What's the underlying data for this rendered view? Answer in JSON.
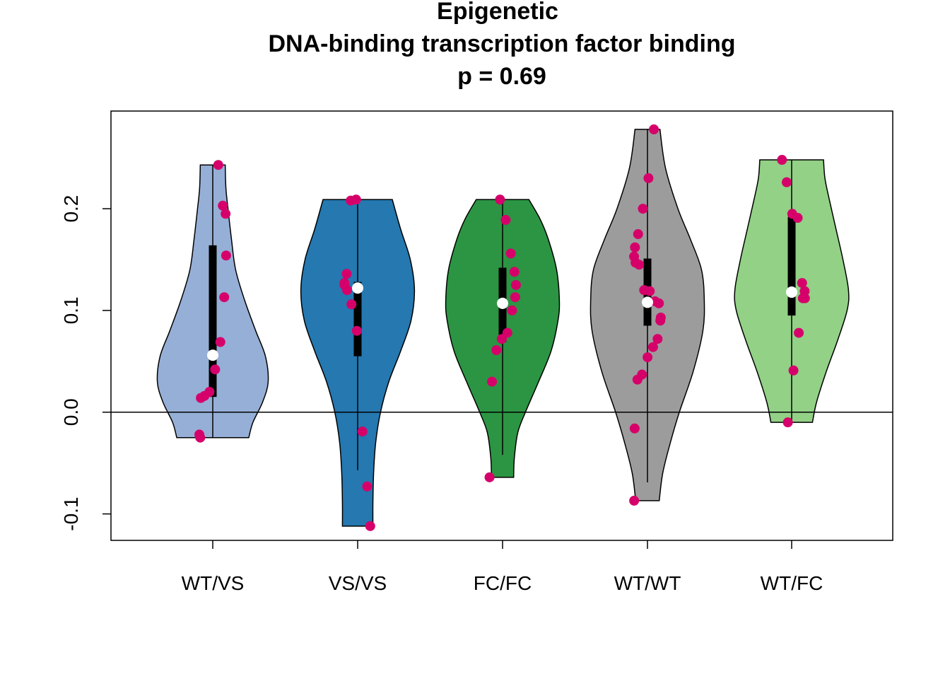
{
  "chart_data": {
    "type": "violin",
    "title_lines": [
      "Epigenetic",
      "DNA-binding transcription factor binding",
      "p = 0.69"
    ],
    "xlabel": "",
    "ylabel": "",
    "ylim": [
      -0.126,
      0.296
    ],
    "yticks": [
      -0.1,
      0.0,
      0.1,
      0.2
    ],
    "ytick_labels": [
      "-0.1",
      "0.0",
      "0.1",
      "0.2"
    ],
    "reference_line_y": 0.0,
    "categories": [
      "WT/VS",
      "VS/VS",
      "FC/FC",
      "WT/WT",
      "WT/FC"
    ],
    "point_color": "#d6006a",
    "groups": [
      {
        "name": "WT/VS",
        "fill": "#96afd7",
        "min": -0.025,
        "max": 0.243,
        "q1": 0.015,
        "median": 0.056,
        "q3": 0.164,
        "whisker_low": -0.025,
        "whisker_high": 0.243,
        "density": [
          [
            -0.025,
            0.52
          ],
          [
            -0.01,
            0.58
          ],
          [
            0.01,
            0.72
          ],
          [
            0.03,
            0.8
          ],
          [
            0.055,
            0.76
          ],
          [
            0.08,
            0.62
          ],
          [
            0.11,
            0.46
          ],
          [
            0.14,
            0.33
          ],
          [
            0.17,
            0.27
          ],
          [
            0.2,
            0.22
          ],
          [
            0.22,
            0.19
          ],
          [
            0.243,
            0.18
          ]
        ],
        "points": [
          0.243,
          0.203,
          0.195,
          0.154,
          0.113,
          0.069,
          0.042,
          0.02,
          0.016,
          0.014,
          -0.022,
          -0.025
        ]
      },
      {
        "name": "VS/VS",
        "fill": "#2578b0",
        "min": -0.112,
        "max": 0.209,
        "q1": 0.055,
        "median": 0.122,
        "q3": 0.128,
        "whisker_low": -0.057,
        "whisker_high": 0.209,
        "density": [
          [
            -0.112,
            0.22
          ],
          [
            -0.09,
            0.22
          ],
          [
            -0.06,
            0.23
          ],
          [
            -0.03,
            0.26
          ],
          [
            0.0,
            0.33
          ],
          [
            0.03,
            0.45
          ],
          [
            0.06,
            0.62
          ],
          [
            0.09,
            0.77
          ],
          [
            0.12,
            0.82
          ],
          [
            0.15,
            0.76
          ],
          [
            0.18,
            0.62
          ],
          [
            0.209,
            0.5
          ]
        ],
        "points": [
          0.209,
          0.208,
          0.136,
          0.127,
          0.125,
          0.12,
          0.106,
          0.08,
          -0.019,
          -0.073,
          -0.112
        ]
      },
      {
        "name": "FC/FC",
        "fill": "#2c9543",
        "min": -0.064,
        "max": 0.209,
        "q1": 0.069,
        "median": 0.107,
        "q3": 0.142,
        "whisker_low": -0.042,
        "whisker_high": 0.209,
        "density": [
          [
            -0.064,
            0.16
          ],
          [
            -0.045,
            0.17
          ],
          [
            -0.02,
            0.22
          ],
          [
            0.0,
            0.33
          ],
          [
            0.03,
            0.52
          ],
          [
            0.06,
            0.7
          ],
          [
            0.09,
            0.8
          ],
          [
            0.11,
            0.82
          ],
          [
            0.14,
            0.78
          ],
          [
            0.17,
            0.66
          ],
          [
            0.19,
            0.54
          ],
          [
            0.209,
            0.38
          ]
        ],
        "points": [
          0.209,
          0.189,
          0.156,
          0.138,
          0.125,
          0.113,
          0.1,
          0.078,
          0.072,
          0.061,
          0.03,
          -0.064
        ]
      },
      {
        "name": "WT/WT",
        "fill": "#9c9c9c",
        "min": -0.087,
        "max": 0.278,
        "q1": 0.085,
        "median": 0.108,
        "q3": 0.151,
        "whisker_low": -0.069,
        "whisker_high": 0.278,
        "density": [
          [
            -0.087,
            0.17
          ],
          [
            -0.06,
            0.22
          ],
          [
            -0.03,
            0.33
          ],
          [
            0.0,
            0.46
          ],
          [
            0.04,
            0.66
          ],
          [
            0.08,
            0.8
          ],
          [
            0.11,
            0.82
          ],
          [
            0.14,
            0.78
          ],
          [
            0.17,
            0.62
          ],
          [
            0.2,
            0.44
          ],
          [
            0.24,
            0.26
          ],
          [
            0.278,
            0.18
          ]
        ],
        "points": [
          0.278,
          0.23,
          0.2,
          0.175,
          0.162,
          0.153,
          0.147,
          0.145,
          0.12,
          0.119,
          0.109,
          0.107,
          0.093,
          0.09,
          0.072,
          0.064,
          0.054,
          0.037,
          0.032,
          -0.016,
          -0.087
        ]
      },
      {
        "name": "WT/FC",
        "fill": "#92d186",
        "min": -0.01,
        "max": 0.248,
        "q1": 0.095,
        "median": 0.118,
        "q3": 0.192,
        "whisker_low": -0.01,
        "whisker_high": 0.248,
        "density": [
          [
            -0.01,
            0.3
          ],
          [
            0.01,
            0.36
          ],
          [
            0.04,
            0.5
          ],
          [
            0.07,
            0.66
          ],
          [
            0.1,
            0.8
          ],
          [
            0.12,
            0.82
          ],
          [
            0.15,
            0.74
          ],
          [
            0.18,
            0.64
          ],
          [
            0.21,
            0.54
          ],
          [
            0.23,
            0.48
          ],
          [
            0.248,
            0.46
          ]
        ],
        "points": [
          0.248,
          0.226,
          0.195,
          0.191,
          0.127,
          0.119,
          0.112,
          0.112,
          0.078,
          0.041,
          -0.01
        ]
      }
    ]
  }
}
